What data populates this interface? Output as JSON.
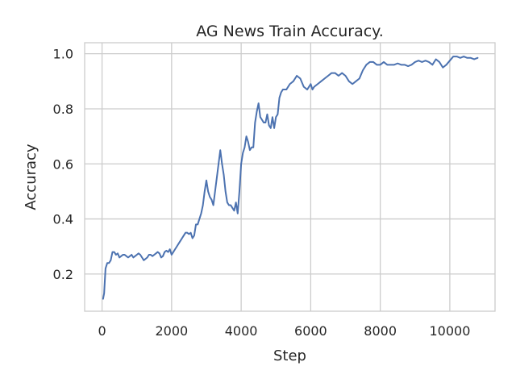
{
  "chart_data": {
    "type": "line",
    "title": "AG News Train Accuracy.",
    "xlabel": "Step",
    "ylabel": "Accuracy",
    "xlim": [
      -500,
      11300
    ],
    "ylim": [
      0.065,
      1.04
    ],
    "xticks": [
      0,
      2000,
      4000,
      6000,
      8000,
      10000
    ],
    "yticks": [
      0.2,
      0.4,
      0.6,
      0.8,
      1.0
    ],
    "xtick_labels": [
      "0",
      "2000",
      "4000",
      "6000",
      "8000",
      "10000"
    ],
    "ytick_labels": [
      "0.2",
      "0.4",
      "0.6",
      "0.8",
      "1.0"
    ],
    "grid": true,
    "colors": {
      "line": "#4c72b0",
      "grid": "#cccccc",
      "spine": "#cccccc"
    },
    "series": [
      {
        "x": [
          30,
          60,
          100,
          150,
          200,
          250,
          300,
          350,
          400,
          450,
          500,
          550,
          600,
          650,
          700,
          750,
          800,
          850,
          900,
          950,
          1000,
          1050,
          1100,
          1150,
          1200,
          1250,
          1300,
          1350,
          1400,
          1450,
          1500,
          1550,
          1600,
          1650,
          1700,
          1750,
          1800,
          1850,
          1900,
          1950,
          2000,
          2050,
          2100,
          2150,
          2200,
          2250,
          2300,
          2350,
          2400,
          2450,
          2500,
          2550,
          2600,
          2650,
          2700,
          2750,
          2800,
          2850,
          2900,
          2950,
          3000,
          3050,
          3100,
          3150,
          3200,
          3250,
          3300,
          3350,
          3400,
          3450,
          3500,
          3550,
          3600,
          3650,
          3700,
          3750,
          3800,
          3850,
          3900,
          3950,
          4000,
          4050,
          4100,
          4150,
          4200,
          4250,
          4300,
          4350,
          4400,
          4450,
          4500,
          4550,
          4600,
          4650,
          4700,
          4750,
          4800,
          4850,
          4900,
          4950,
          5000,
          5050,
          5100,
          5150,
          5200,
          5300,
          5400,
          5500,
          5600,
          5700,
          5800,
          5900,
          6000,
          6050,
          6100,
          6200,
          6300,
          6400,
          6500,
          6600,
          6700,
          6800,
          6900,
          7000,
          7100,
          7200,
          7300,
          7400,
          7500,
          7600,
          7700,
          7800,
          7900,
          8000,
          8100,
          8200,
          8300,
          8400,
          8500,
          8600,
          8700,
          8800,
          8900,
          9000,
          9100,
          9200,
          9300,
          9400,
          9500,
          9600,
          9700,
          9800,
          9900,
          10000,
          10100,
          10200,
          10300,
          10400,
          10500,
          10600,
          10700,
          10800
        ],
        "values": [
          0.11,
          0.13,
          0.22,
          0.24,
          0.24,
          0.25,
          0.28,
          0.28,
          0.27,
          0.275,
          0.26,
          0.265,
          0.27,
          0.27,
          0.265,
          0.26,
          0.265,
          0.27,
          0.26,
          0.265,
          0.27,
          0.275,
          0.27,
          0.26,
          0.25,
          0.255,
          0.26,
          0.27,
          0.27,
          0.265,
          0.27,
          0.275,
          0.28,
          0.275,
          0.26,
          0.265,
          0.28,
          0.285,
          0.28,
          0.29,
          0.27,
          0.28,
          0.29,
          0.3,
          0.31,
          0.32,
          0.33,
          0.34,
          0.35,
          0.35,
          0.345,
          0.35,
          0.33,
          0.34,
          0.38,
          0.38,
          0.4,
          0.42,
          0.45,
          0.5,
          0.54,
          0.5,
          0.48,
          0.47,
          0.45,
          0.5,
          0.55,
          0.6,
          0.65,
          0.6,
          0.56,
          0.5,
          0.46,
          0.45,
          0.45,
          0.44,
          0.43,
          0.46,
          0.42,
          0.5,
          0.6,
          0.64,
          0.66,
          0.7,
          0.68,
          0.65,
          0.66,
          0.66,
          0.75,
          0.79,
          0.82,
          0.77,
          0.76,
          0.75,
          0.75,
          0.78,
          0.74,
          0.73,
          0.77,
          0.73,
          0.77,
          0.78,
          0.84,
          0.86,
          0.87,
          0.87,
          0.89,
          0.9,
          0.92,
          0.91,
          0.88,
          0.87,
          0.89,
          0.87,
          0.88,
          0.89,
          0.9,
          0.91,
          0.92,
          0.93,
          0.93,
          0.92,
          0.93,
          0.92,
          0.9,
          0.89,
          0.9,
          0.91,
          0.94,
          0.96,
          0.97,
          0.97,
          0.96,
          0.96,
          0.97,
          0.96,
          0.96,
          0.96,
          0.965,
          0.96,
          0.96,
          0.955,
          0.96,
          0.97,
          0.975,
          0.97,
          0.975,
          0.97,
          0.96,
          0.98,
          0.97,
          0.95,
          0.96,
          0.975,
          0.99,
          0.99,
          0.985,
          0.99,
          0.985,
          0.985,
          0.98,
          0.985
        ]
      }
    ]
  }
}
